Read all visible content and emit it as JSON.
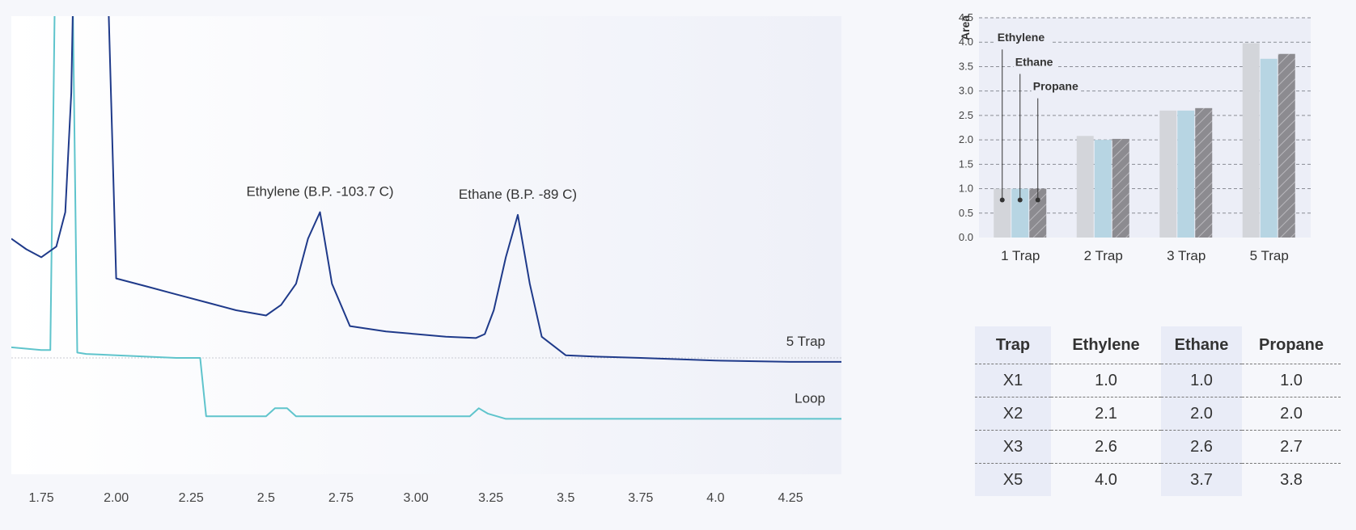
{
  "chart_data": [
    {
      "type": "line",
      "title": "",
      "xlabel": "",
      "ylabel": "",
      "xlim": [
        1.65,
        4.42
      ],
      "xticks": [
        "1.75",
        "2.00",
        "2.25",
        "2.5",
        "2.75",
        "3.00",
        "3.25",
        "3.5",
        "3.75",
        "4.0",
        "4.25"
      ],
      "grid": false,
      "annotations": [
        {
          "text": "Ethylene (B.P. -103.7 C)",
          "x": 2.68
        },
        {
          "text": "Ethane (B.P. -89 C)",
          "x": 3.34
        }
      ],
      "series": [
        {
          "name": "5 Trap",
          "color": "#1f3a8a",
          "x": [
            1.65,
            1.7,
            1.75,
            1.8,
            1.83,
            1.85,
            1.87,
            1.9,
            1.93,
            1.97,
            2.0,
            2.1,
            2.2,
            2.3,
            2.4,
            2.5,
            2.55,
            2.6,
            2.64,
            2.68,
            2.72,
            2.78,
            2.9,
            3.0,
            3.1,
            3.2,
            3.23,
            3.26,
            3.3,
            3.34,
            3.38,
            3.42,
            3.5,
            3.6,
            3.75,
            4.0,
            4.25,
            4.42
          ],
          "y": [
            45,
            41,
            38,
            42,
            55,
            100,
            220,
            260,
            250,
            150,
            30,
            27,
            24,
            21,
            18,
            16,
            20,
            28,
            45,
            55,
            28,
            12,
            10,
            9,
            8,
            7.5,
            9,
            18,
            38,
            54,
            28,
            8,
            1,
            0.5,
            0,
            -1,
            -1.5,
            -1.5
          ]
        },
        {
          "name": "Loop",
          "color": "#5fc4cc",
          "x": [
            1.65,
            1.75,
            1.78,
            1.8,
            1.82,
            1.85,
            1.87,
            1.9,
            2.0,
            2.2,
            2.28,
            2.3,
            2.5,
            2.53,
            2.57,
            2.6,
            2.75,
            3.0,
            3.18,
            3.21,
            3.24,
            3.3,
            3.75,
            4.0,
            4.42
          ],
          "y": [
            4,
            3,
            3,
            180,
            260,
            180,
            2,
            1.5,
            1,
            0,
            0,
            -22,
            -22,
            -19,
            -19,
            -22,
            -22,
            -22,
            -22,
            -19,
            -21,
            -23,
            -23,
            -23,
            -23
          ]
        }
      ]
    },
    {
      "type": "bar",
      "title": "",
      "xlabel": "",
      "ylabel": "Area",
      "ylim": [
        0,
        4.5
      ],
      "yticks": [
        "0.0",
        "0.5",
        "1.0",
        "1.5",
        "2.0",
        "2.5",
        "3.0",
        "3.5",
        "4.0",
        "4.5"
      ],
      "grid": true,
      "categories": [
        "1 Trap",
        "2 Trap",
        "3 Trap",
        "5 Trap"
      ],
      "series": [
        {
          "name": "Ethylene",
          "color": "#d3d5da",
          "values": [
            1.0,
            2.08,
            2.6,
            3.98
          ]
        },
        {
          "name": "Ethane",
          "color": "#b7d5e3",
          "values": [
            1.0,
            2.0,
            2.6,
            3.66
          ]
        },
        {
          "name": "Propane",
          "color": "#8c8b90",
          "values": [
            1.0,
            2.02,
            2.65,
            3.76
          ]
        }
      ]
    },
    {
      "type": "table",
      "columns": [
        "Trap",
        "Ethylene",
        "Ethane",
        "Propane"
      ],
      "rows": [
        [
          "X1",
          "1.0",
          "1.0",
          "1.0"
        ],
        [
          "X2",
          "2.1",
          "2.0",
          "2.0"
        ],
        [
          "X3",
          "2.6",
          "2.6",
          "2.7"
        ],
        [
          "X5",
          "4.0",
          "3.7",
          "3.8"
        ]
      ]
    }
  ]
}
